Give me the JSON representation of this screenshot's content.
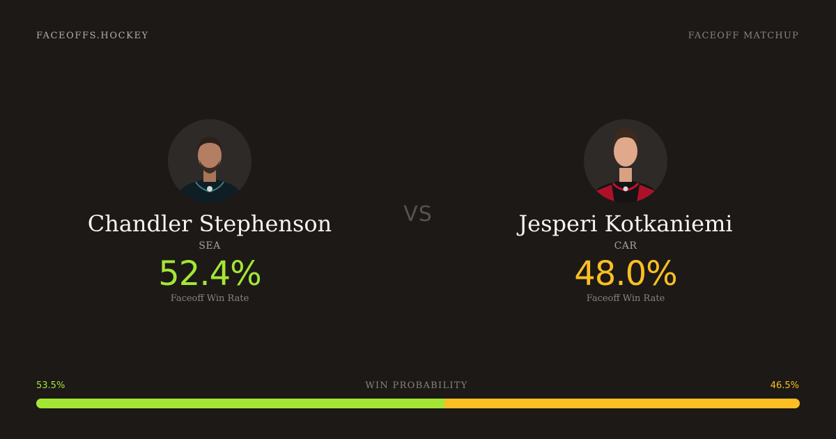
{
  "brand": "FACEOFFS.HOCKEY",
  "header_tag": "FACEOFF MATCHUP",
  "vs_label": "VS",
  "colors": {
    "background": "#1c1917",
    "left_accent": "#a3e635",
    "right_accent": "#fbbf24"
  },
  "players": {
    "left": {
      "name": "Chandler Stephenson",
      "team": "SEA",
      "win_rate": "52.4%",
      "win_rate_label": "Faceoff Win Rate",
      "avatar_icon": "player-headshot"
    },
    "right": {
      "name": "Jesperi Kotkaniemi",
      "team": "CAR",
      "win_rate": "48.0%",
      "win_rate_label": "Faceoff Win Rate",
      "avatar_icon": "player-headshot"
    }
  },
  "win_probability": {
    "title": "WIN PROBABILITY",
    "left_label": "53.5%",
    "right_label": "46.5%",
    "left_value": 53.5,
    "right_value": 46.5
  }
}
